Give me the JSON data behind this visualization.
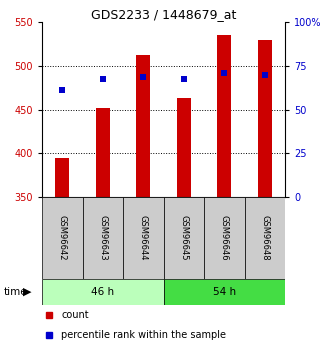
{
  "title": "GDS2233 / 1448679_at",
  "samples": [
    "GSM96642",
    "GSM96643",
    "GSM96644",
    "GSM96645",
    "GSM96646",
    "GSM96648"
  ],
  "counts": [
    395,
    452,
    512,
    463,
    535,
    530
  ],
  "percentiles": [
    472,
    485,
    487,
    485,
    492,
    490
  ],
  "bar_bottom": 350,
  "ylim_left": [
    350,
    550
  ],
  "ylim_right": [
    0,
    100
  ],
  "yticks_left": [
    350,
    400,
    450,
    500,
    550
  ],
  "yticks_right": [
    0,
    25,
    50,
    75,
    100
  ],
  "ytick_labels_right": [
    "0",
    "25",
    "50",
    "75",
    "100%"
  ],
  "bar_color": "#cc0000",
  "dot_color": "#0000cc",
  "group1": {
    "label": "46 h",
    "color": "#bbffbb"
  },
  "group2": {
    "label": "54 h",
    "color": "#44dd44"
  },
  "label_count": "count",
  "label_percentile": "percentile rank within the sample",
  "time_label": "time",
  "bar_width": 0.35,
  "tick_label_color_left": "#cc0000",
  "tick_label_color_right": "#0000cc",
  "sample_box_color": "#cccccc",
  "title_fontsize": 9,
  "axis_fontsize": 7,
  "legend_fontsize": 7
}
